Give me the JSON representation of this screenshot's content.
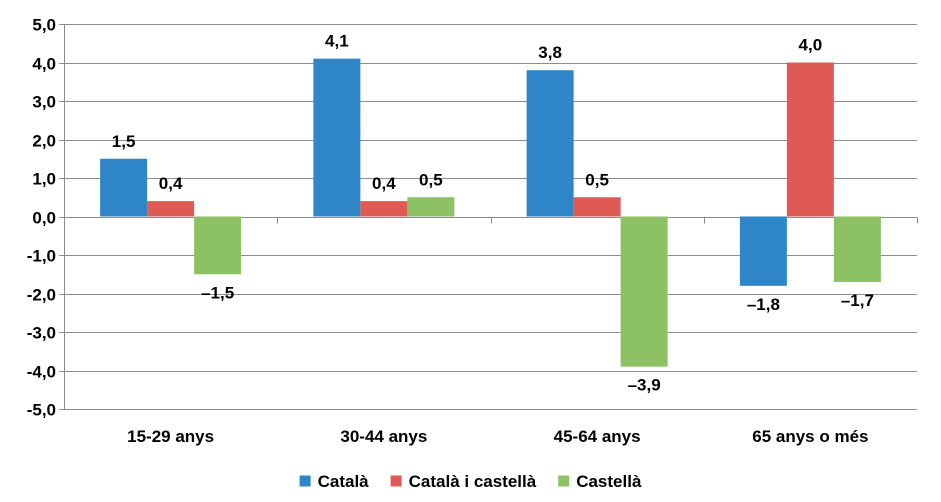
{
  "chart_data": {
    "type": "bar",
    "title": "",
    "xlabel": "",
    "ylabel": "",
    "ylim": [
      -5.0,
      5.0
    ],
    "yticks": [
      "5,0",
      "4,0",
      "3,0",
      "2,0",
      "1,0",
      "0,0",
      "-1,0",
      "-2,0",
      "-3,0",
      "-4,0",
      "-5,0"
    ],
    "ytick_values": [
      5,
      4,
      3,
      2,
      1,
      0,
      -1,
      -2,
      -3,
      -4,
      -5
    ],
    "grid": true,
    "legend_position": "bottom",
    "categories": [
      "15-29 anys",
      "30-44 anys",
      "45-64 anys",
      "65 anys o més"
    ],
    "series": [
      {
        "name": "Català",
        "color": "#2E86C8",
        "values": [
          1.5,
          4.1,
          3.8,
          -1.8
        ],
        "labels": [
          "1,5",
          "4,1",
          "3,8",
          "–1,8"
        ]
      },
      {
        "name": "Català i castellà",
        "color": "#E05A55",
        "values": [
          0.4,
          0.4,
          0.5,
          4.0
        ],
        "labels": [
          "0,4",
          "0,4",
          "0,5",
          "4,0"
        ]
      },
      {
        "name": "Castellà",
        "color": "#8CC264",
        "values": [
          -1.5,
          0.5,
          -3.9,
          -1.7
        ],
        "labels": [
          "–1,5",
          "0,5",
          "–3,9",
          "–1,7"
        ]
      }
    ]
  }
}
